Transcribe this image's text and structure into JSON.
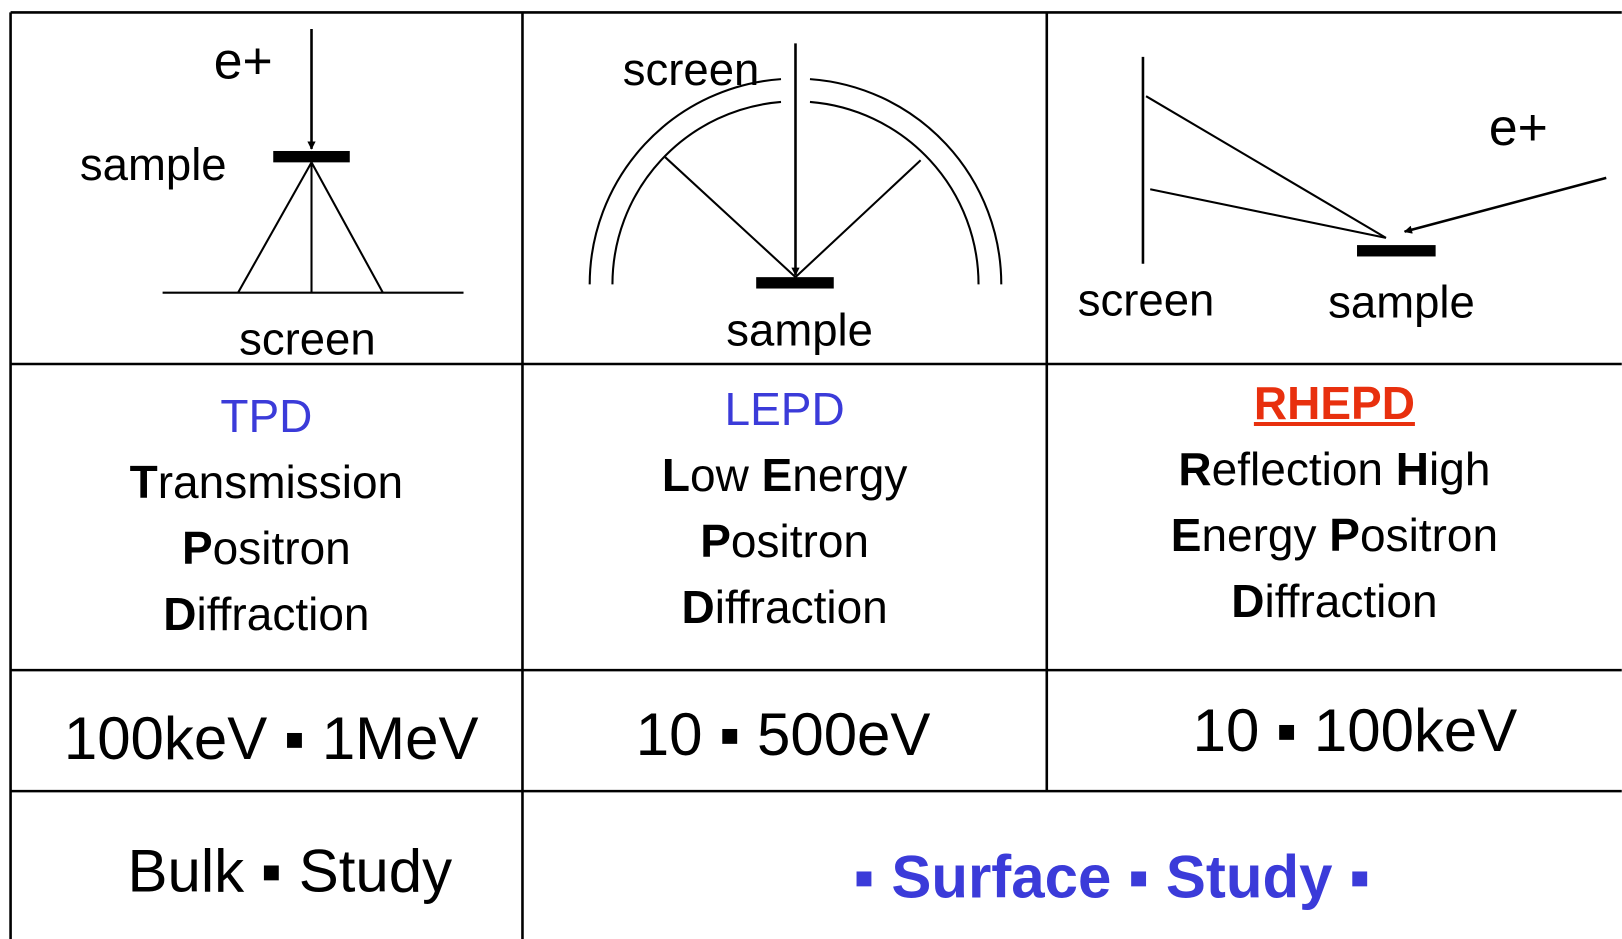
{
  "diagrams": [
    {
      "labels": [
        "e+",
        "sample",
        "screen"
      ]
    },
    {
      "labels": [
        "screen",
        "sample"
      ]
    },
    {
      "labels": [
        "e+",
        "screen",
        "sample"
      ]
    }
  ],
  "methods": [
    {
      "acronym": "TPD",
      "name_lines": [
        [
          "Transmission"
        ],
        [
          "Positron"
        ],
        [
          "Diffraction"
        ]
      ]
    },
    {
      "acronym": "LEPD",
      "name_lines": [
        [
          "Low",
          "Energy"
        ],
        [
          "Positron"
        ],
        [
          "Diffraction"
        ]
      ]
    },
    {
      "acronym": "RHEPD",
      "name_lines": [
        [
          "Reflection",
          "High"
        ],
        [
          "Energy",
          "Positron"
        ],
        [
          "Diffraction"
        ]
      ]
    }
  ],
  "energies": [
    "100keV ▪ 1MeV",
    "10 ▪ 500eV",
    "10 ▪ 100keV"
  ],
  "studies": [
    "Bulk ▪ Study",
    "▪ Surface ▪ Study ▪"
  ]
}
